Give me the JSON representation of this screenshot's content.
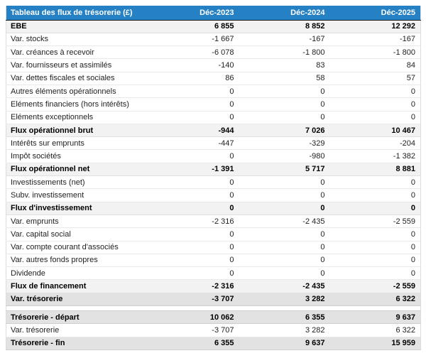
{
  "table": {
    "title": "Tableau des flux de trésorerie (£)",
    "columns": [
      "Déc-2023",
      "Déc-2024",
      "Déc-2025"
    ],
    "colors": {
      "header_bg": "#2580c4",
      "header_text": "#ffffff",
      "subtotal_bg": "#f2f2f2",
      "total_bg": "#e2e2e2"
    },
    "rows": [
      {
        "label": "EBE",
        "values": [
          "6 855",
          "8 852",
          "12 292"
        ],
        "style": "subtotal"
      },
      {
        "label": "Var. stocks",
        "values": [
          "-1 667",
          "-167",
          "-167"
        ],
        "style": "normal"
      },
      {
        "label": "Var. créances à recevoir",
        "values": [
          "-6 078",
          "-1 800",
          "-1 800"
        ],
        "style": "normal"
      },
      {
        "label": "Var. fournisseurs et assimilés",
        "values": [
          "-140",
          "83",
          "84"
        ],
        "style": "normal"
      },
      {
        "label": "Var. dettes fiscales et sociales",
        "values": [
          "86",
          "58",
          "57"
        ],
        "style": "normal"
      },
      {
        "label": "Autres éléments opérationnels",
        "values": [
          "0",
          "0",
          "0"
        ],
        "style": "normal"
      },
      {
        "label": "Eléments financiers (hors intérêts)",
        "values": [
          "0",
          "0",
          "0"
        ],
        "style": "normal"
      },
      {
        "label": "Eléments exceptionnels",
        "values": [
          "0",
          "0",
          "0"
        ],
        "style": "normal"
      },
      {
        "label": "Flux opérationnel brut",
        "values": [
          "-944",
          "7 026",
          "10 467"
        ],
        "style": "subtotal"
      },
      {
        "label": "Intérêts sur emprunts",
        "values": [
          "-447",
          "-329",
          "-204"
        ],
        "style": "normal"
      },
      {
        "label": "Impôt sociétés",
        "values": [
          "0",
          "-980",
          "-1 382"
        ],
        "style": "normal"
      },
      {
        "label": "Flux opérationnel net",
        "values": [
          "-1 391",
          "5 717",
          "8 881"
        ],
        "style": "subtotal"
      },
      {
        "label": "Investissements (net)",
        "values": [
          "0",
          "0",
          "0"
        ],
        "style": "normal"
      },
      {
        "label": "Subv. investissement",
        "values": [
          "0",
          "0",
          "0"
        ],
        "style": "normal"
      },
      {
        "label": "Flux d'investissement",
        "values": [
          "0",
          "0",
          "0"
        ],
        "style": "subtotal"
      },
      {
        "label": "Var. emprunts",
        "values": [
          "-2 316",
          "-2 435",
          "-2 559"
        ],
        "style": "normal"
      },
      {
        "label": "Var. capital social",
        "values": [
          "0",
          "0",
          "0"
        ],
        "style": "normal"
      },
      {
        "label": "Var. compte courant d'associés",
        "values": [
          "0",
          "0",
          "0"
        ],
        "style": "normal"
      },
      {
        "label": "Var. autres fonds propres",
        "values": [
          "0",
          "0",
          "0"
        ],
        "style": "normal"
      },
      {
        "label": "Dividende",
        "values": [
          "0",
          "0",
          "0"
        ],
        "style": "normal"
      },
      {
        "label": "Flux de financement",
        "values": [
          "-2 316",
          "-2 435",
          "-2 559"
        ],
        "style": "subtotal"
      },
      {
        "label": "Var. trésorerie",
        "values": [
          "-3 707",
          "3 282",
          "6 322"
        ],
        "style": "total"
      }
    ],
    "summary_rows": [
      {
        "label": "Trésorerie - départ",
        "values": [
          "10 062",
          "6 355",
          "9 637"
        ],
        "style": "total"
      },
      {
        "label": "Var. trésorerie",
        "values": [
          "-3 707",
          "3 282",
          "6 322"
        ],
        "style": "normal"
      },
      {
        "label": "Trésorerie - fin",
        "values": [
          "6 355",
          "9 637",
          "15 959"
        ],
        "style": "total"
      }
    ]
  },
  "chart_data": {
    "type": "table",
    "title": "Tableau des flux de trésorerie (£)",
    "columns": [
      "Déc-2023",
      "Déc-2024",
      "Déc-2025"
    ],
    "rows": [
      {
        "label": "EBE",
        "values": [
          6855,
          8852,
          12292
        ]
      },
      {
        "label": "Var. stocks",
        "values": [
          -1667,
          -167,
          -167
        ]
      },
      {
        "label": "Var. créances à recevoir",
        "values": [
          -6078,
          -1800,
          -1800
        ]
      },
      {
        "label": "Var. fournisseurs et assimilés",
        "values": [
          -140,
          83,
          84
        ]
      },
      {
        "label": "Var. dettes fiscales et sociales",
        "values": [
          86,
          58,
          57
        ]
      },
      {
        "label": "Autres éléments opérationnels",
        "values": [
          0,
          0,
          0
        ]
      },
      {
        "label": "Eléments financiers (hors intérêts)",
        "values": [
          0,
          0,
          0
        ]
      },
      {
        "label": "Eléments exceptionnels",
        "values": [
          0,
          0,
          0
        ]
      },
      {
        "label": "Flux opérationnel brut",
        "values": [
          -944,
          7026,
          10467
        ]
      },
      {
        "label": "Intérêts sur emprunts",
        "values": [
          -447,
          -329,
          -204
        ]
      },
      {
        "label": "Impôt sociétés",
        "values": [
          0,
          -980,
          -1382
        ]
      },
      {
        "label": "Flux opérationnel net",
        "values": [
          -1391,
          5717,
          8881
        ]
      },
      {
        "label": "Investissements (net)",
        "values": [
          0,
          0,
          0
        ]
      },
      {
        "label": "Subv. investissement",
        "values": [
          0,
          0,
          0
        ]
      },
      {
        "label": "Flux d'investissement",
        "values": [
          0,
          0,
          0
        ]
      },
      {
        "label": "Var. emprunts",
        "values": [
          -2316,
          -2435,
          -2559
        ]
      },
      {
        "label": "Var. capital social",
        "values": [
          0,
          0,
          0
        ]
      },
      {
        "label": "Var. compte courant d'associés",
        "values": [
          0,
          0,
          0
        ]
      },
      {
        "label": "Var. autres fonds propres",
        "values": [
          0,
          0,
          0
        ]
      },
      {
        "label": "Dividende",
        "values": [
          0,
          0,
          0
        ]
      },
      {
        "label": "Flux de financement",
        "values": [
          -2316,
          -2435,
          -2559
        ]
      },
      {
        "label": "Var. trésorerie",
        "values": [
          -3707,
          3282,
          6322
        ]
      },
      {
        "label": "Trésorerie - départ",
        "values": [
          10062,
          6355,
          9637
        ]
      },
      {
        "label": "Var. trésorerie",
        "values": [
          -3707,
          3282,
          6322
        ]
      },
      {
        "label": "Trésorerie - fin",
        "values": [
          6355,
          9637,
          15959
        ]
      }
    ]
  }
}
